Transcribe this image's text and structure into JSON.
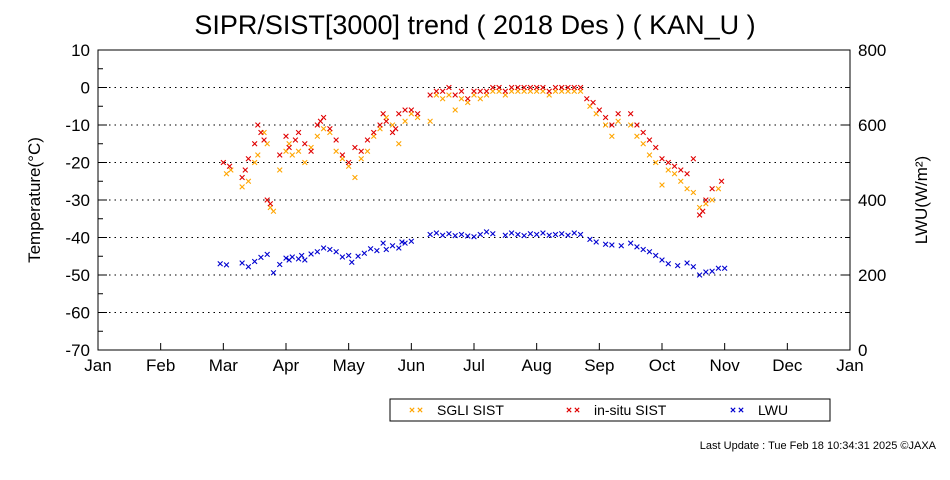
{
  "chart_data": {
    "type": "scatter",
    "title": "SIPR/SIST[3000] trend ( 2018 Des ) ( KAN_U )",
    "ylabel_left": "Temperature(°C)",
    "ylabel_right": "LWU(W/m²)",
    "ylim_left": [
      -70,
      10
    ],
    "ylim_right": [
      0,
      800
    ],
    "yticks_left": [
      "10",
      "0",
      "-10",
      "-20",
      "-30",
      "-40",
      "-50",
      "-60",
      "-70"
    ],
    "yticks_right": [
      "800",
      "600",
      "400",
      "200",
      "0"
    ],
    "xtick_labels": [
      "Jan",
      "Feb",
      "Mar",
      "Apr",
      "May",
      "Jun",
      "Jul",
      "Aug",
      "Sep",
      "Oct",
      "Nov",
      "Dec",
      "Jan"
    ],
    "x_unit": "month",
    "grid": "dotted horizontal",
    "legend_position": "bottom",
    "series": [
      {
        "name": "SGLI SIST",
        "color": "#ffa500",
        "axis": "left",
        "points": [
          [
            2.05,
            -23
          ],
          [
            2.12,
            -22
          ],
          [
            2.3,
            -26.5
          ],
          [
            2.4,
            -25
          ],
          [
            2.5,
            -20
          ],
          [
            2.55,
            -18
          ],
          [
            2.65,
            -12
          ],
          [
            2.7,
            -15
          ],
          [
            2.75,
            -32
          ],
          [
            2.8,
            -33
          ],
          [
            2.9,
            -22
          ],
          [
            3.0,
            -17
          ],
          [
            3.05,
            -15
          ],
          [
            3.1,
            -18
          ],
          [
            3.2,
            -17
          ],
          [
            3.3,
            -20
          ],
          [
            3.4,
            -16
          ],
          [
            3.5,
            -13
          ],
          [
            3.6,
            -11
          ],
          [
            3.7,
            -12
          ],
          [
            3.8,
            -17
          ],
          [
            3.9,
            -19
          ],
          [
            4.0,
            -21
          ],
          [
            4.1,
            -24
          ],
          [
            4.2,
            -19
          ],
          [
            4.3,
            -17
          ],
          [
            4.4,
            -13
          ],
          [
            4.5,
            -11
          ],
          [
            4.6,
            -8
          ],
          [
            4.7,
            -10
          ],
          [
            4.8,
            -15
          ],
          [
            4.9,
            -9
          ],
          [
            5.0,
            -7
          ],
          [
            5.1,
            -8
          ],
          [
            5.3,
            -9
          ],
          [
            5.4,
            -2
          ],
          [
            5.5,
            -3
          ],
          [
            5.6,
            -2
          ],
          [
            5.7,
            -6
          ],
          [
            5.8,
            -3
          ],
          [
            5.9,
            -4
          ],
          [
            6.0,
            -2
          ],
          [
            6.1,
            -3
          ],
          [
            6.2,
            -2
          ],
          [
            6.3,
            -1
          ],
          [
            6.4,
            -1
          ],
          [
            6.5,
            -2
          ],
          [
            6.6,
            -1
          ],
          [
            6.7,
            -1
          ],
          [
            6.8,
            -1
          ],
          [
            6.9,
            -1
          ],
          [
            7.0,
            -1
          ],
          [
            7.1,
            -1
          ],
          [
            7.2,
            -2
          ],
          [
            7.3,
            -1
          ],
          [
            7.4,
            -1
          ],
          [
            7.5,
            -1
          ],
          [
            7.6,
            -1
          ],
          [
            7.7,
            -1
          ],
          [
            7.85,
            -5
          ],
          [
            7.95,
            -7
          ],
          [
            8.1,
            -10
          ],
          [
            8.2,
            -13
          ],
          [
            8.3,
            -9
          ],
          [
            8.5,
            -10
          ],
          [
            8.6,
            -13
          ],
          [
            8.7,
            -15
          ],
          [
            8.8,
            -18
          ],
          [
            8.9,
            -20
          ],
          [
            9.0,
            -26
          ],
          [
            9.1,
            -22
          ],
          [
            9.2,
            -23
          ],
          [
            9.3,
            -25
          ],
          [
            9.4,
            -27
          ],
          [
            9.5,
            -28
          ],
          [
            9.6,
            -32
          ],
          [
            9.7,
            -31
          ],
          [
            9.8,
            -30
          ],
          [
            9.9,
            -27
          ]
        ]
      },
      {
        "name": "in-situ SIST",
        "color": "#e00000",
        "axis": "left",
        "points": [
          [
            2.0,
            -20
          ],
          [
            2.1,
            -21
          ],
          [
            2.3,
            -24
          ],
          [
            2.35,
            -22
          ],
          [
            2.4,
            -19
          ],
          [
            2.5,
            -15
          ],
          [
            2.55,
            -10
          ],
          [
            2.6,
            -12
          ],
          [
            2.65,
            -14
          ],
          [
            2.7,
            -30
          ],
          [
            2.75,
            -31
          ],
          [
            2.9,
            -18
          ],
          [
            3.0,
            -13
          ],
          [
            3.05,
            -16
          ],
          [
            3.15,
            -14
          ],
          [
            3.2,
            -12
          ],
          [
            3.3,
            -15
          ],
          [
            3.4,
            -17
          ],
          [
            3.5,
            -10
          ],
          [
            3.55,
            -9
          ],
          [
            3.6,
            -8
          ],
          [
            3.7,
            -11
          ],
          [
            3.8,
            -14
          ],
          [
            3.9,
            -18
          ],
          [
            4.0,
            -20
          ],
          [
            4.1,
            -16
          ],
          [
            4.2,
            -17
          ],
          [
            4.3,
            -14
          ],
          [
            4.4,
            -12
          ],
          [
            4.5,
            -10
          ],
          [
            4.55,
            -7
          ],
          [
            4.6,
            -9
          ],
          [
            4.7,
            -12
          ],
          [
            4.75,
            -11
          ],
          [
            4.8,
            -7
          ],
          [
            4.9,
            -6
          ],
          [
            5.0,
            -6
          ],
          [
            5.1,
            -7
          ],
          [
            5.3,
            -2
          ],
          [
            5.4,
            -1
          ],
          [
            5.5,
            -1
          ],
          [
            5.6,
            0
          ],
          [
            5.7,
            -2
          ],
          [
            5.8,
            -1
          ],
          [
            5.9,
            -3
          ],
          [
            6.0,
            -1
          ],
          [
            6.1,
            -1
          ],
          [
            6.2,
            -1
          ],
          [
            6.3,
            0
          ],
          [
            6.4,
            0
          ],
          [
            6.5,
            -1
          ],
          [
            6.6,
            0
          ],
          [
            6.7,
            0
          ],
          [
            6.8,
            0
          ],
          [
            6.9,
            0
          ],
          [
            7.0,
            0
          ],
          [
            7.1,
            0
          ],
          [
            7.2,
            -1
          ],
          [
            7.3,
            0
          ],
          [
            7.4,
            0
          ],
          [
            7.5,
            0
          ],
          [
            7.6,
            0
          ],
          [
            7.7,
            0
          ],
          [
            7.8,
            -3
          ],
          [
            7.9,
            -4
          ],
          [
            8.0,
            -6
          ],
          [
            8.1,
            -8
          ],
          [
            8.2,
            -10
          ],
          [
            8.3,
            -7
          ],
          [
            8.5,
            -7
          ],
          [
            8.6,
            -10
          ],
          [
            8.7,
            -12
          ],
          [
            8.8,
            -14
          ],
          [
            8.9,
            -16
          ],
          [
            9.0,
            -19
          ],
          [
            9.1,
            -20
          ],
          [
            9.2,
            -21
          ],
          [
            9.3,
            -22
          ],
          [
            9.4,
            -23
          ],
          [
            9.5,
            -19
          ],
          [
            9.6,
            -34
          ],
          [
            9.65,
            -33
          ],
          [
            9.7,
            -30
          ],
          [
            9.8,
            -27
          ],
          [
            9.95,
            -25
          ]
        ]
      },
      {
        "name": "LWU",
        "color": "#0000d0",
        "axis": "right",
        "points": [
          [
            1.95,
            230
          ],
          [
            2.05,
            227
          ],
          [
            2.3,
            232
          ],
          [
            2.4,
            222
          ],
          [
            2.5,
            236
          ],
          [
            2.6,
            247
          ],
          [
            2.7,
            255
          ],
          [
            2.8,
            206
          ],
          [
            2.9,
            228
          ],
          [
            3.0,
            245
          ],
          [
            3.05,
            240
          ],
          [
            3.1,
            248
          ],
          [
            3.2,
            243
          ],
          [
            3.25,
            252
          ],
          [
            3.3,
            240
          ],
          [
            3.4,
            256
          ],
          [
            3.5,
            262
          ],
          [
            3.6,
            272
          ],
          [
            3.7,
            268
          ],
          [
            3.8,
            262
          ],
          [
            3.9,
            248
          ],
          [
            4.0,
            252
          ],
          [
            4.05,
            234
          ],
          [
            4.15,
            250
          ],
          [
            4.25,
            258
          ],
          [
            4.35,
            270
          ],
          [
            4.45,
            265
          ],
          [
            4.55,
            285
          ],
          [
            4.6,
            268
          ],
          [
            4.7,
            278
          ],
          [
            4.8,
            272
          ],
          [
            4.85,
            288
          ],
          [
            4.9,
            285
          ],
          [
            5.0,
            290
          ],
          [
            5.3,
            308
          ],
          [
            5.4,
            312
          ],
          [
            5.5,
            306
          ],
          [
            5.6,
            310
          ],
          [
            5.7,
            305
          ],
          [
            5.8,
            308
          ],
          [
            5.9,
            304
          ],
          [
            6.0,
            302
          ],
          [
            6.1,
            308
          ],
          [
            6.2,
            315
          ],
          [
            6.3,
            310
          ],
          [
            6.5,
            306
          ],
          [
            6.6,
            312
          ],
          [
            6.7,
            308
          ],
          [
            6.8,
            305
          ],
          [
            6.9,
            310
          ],
          [
            7.0,
            308
          ],
          [
            7.1,
            312
          ],
          [
            7.2,
            306
          ],
          [
            7.3,
            308
          ],
          [
            7.4,
            310
          ],
          [
            7.5,
            306
          ],
          [
            7.6,
            312
          ],
          [
            7.7,
            308
          ],
          [
            7.85,
            295
          ],
          [
            7.95,
            288
          ],
          [
            8.1,
            282
          ],
          [
            8.2,
            280
          ],
          [
            8.35,
            278
          ],
          [
            8.5,
            285
          ],
          [
            8.6,
            275
          ],
          [
            8.7,
            268
          ],
          [
            8.8,
            262
          ],
          [
            8.9,
            252
          ],
          [
            9.0,
            240
          ],
          [
            9.1,
            230
          ],
          [
            9.25,
            225
          ],
          [
            9.4,
            232
          ],
          [
            9.5,
            222
          ],
          [
            9.6,
            200
          ],
          [
            9.7,
            208
          ],
          [
            9.8,
            210
          ],
          [
            9.9,
            218
          ],
          [
            10.0,
            218
          ]
        ]
      }
    ]
  },
  "footer": "Last Update : Tue Feb 18 10:34:31 2025  ©JAXA"
}
